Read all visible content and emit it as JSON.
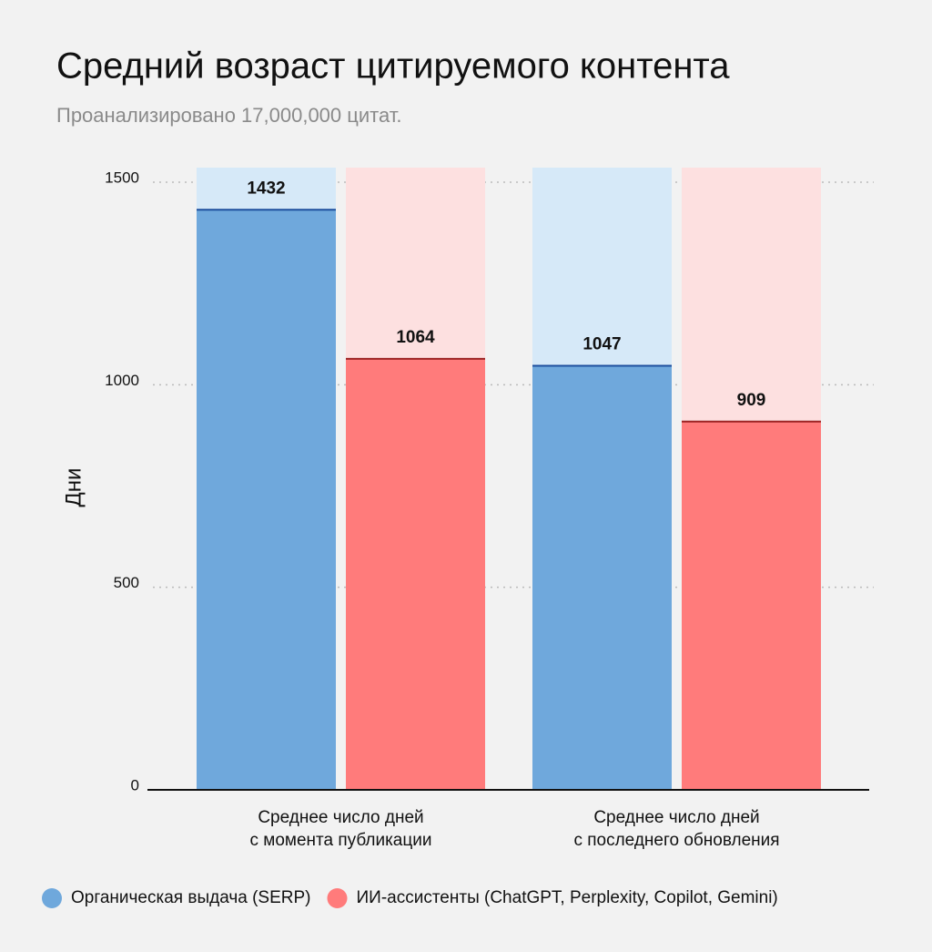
{
  "chart_data": {
    "type": "bar",
    "title": "Средний возраст цитируемого контента",
    "subtitle": "Проанализировано 17,000,000 цитат.",
    "y_label": "Дни",
    "categories": [
      [
        "Среднее число дней",
        "с момента публикации"
      ],
      [
        "Среднее число дней",
        "с последнего обновления"
      ]
    ],
    "series": [
      {
        "name": "Органическая выдача (SERP)",
        "color": "#6fa8dc",
        "values": [
          1432,
          1047
        ]
      },
      {
        "name": "ИИ-ассистенты (ChatGPT, Perplexity, Copilot, Gemini)",
        "color": "#ff7b7b",
        "values": [
          1064,
          909
        ]
      }
    ],
    "ylim": [
      0,
      1536
    ],
    "yticks": [
      0,
      500,
      1000,
      1500
    ],
    "grid": true,
    "legend": "bottom"
  }
}
